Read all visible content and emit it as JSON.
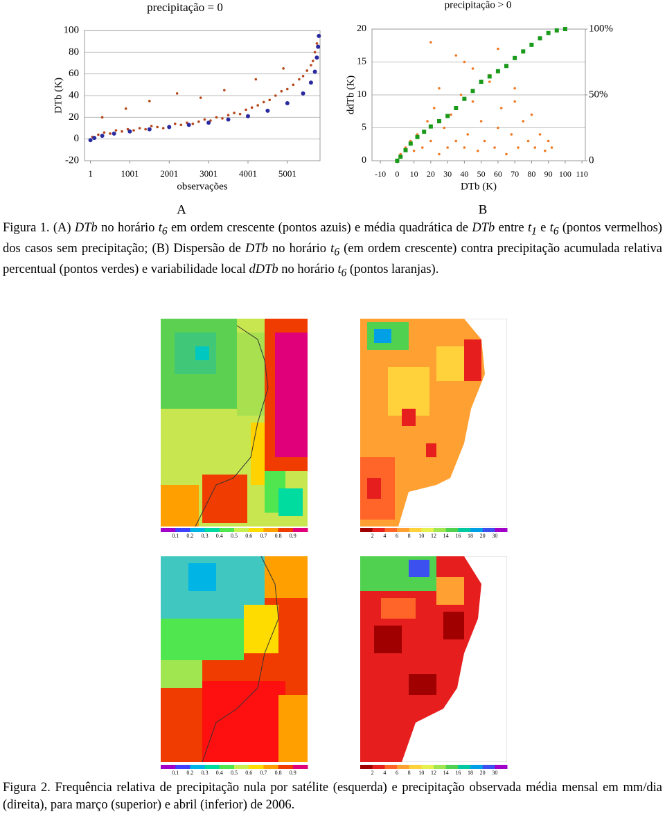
{
  "chart_data": [
    {
      "type": "scatter",
      "title": "precipitação = 0",
      "ylabel": "DTb (K)",
      "xlabel": "observações",
      "xlim": [
        -150,
        5830
      ],
      "ylim": [
        -20,
        100
      ],
      "xticks": [
        1,
        1001,
        2001,
        3001,
        4001,
        5001
      ],
      "yticks": [
        -20,
        0,
        20,
        40,
        60,
        80,
        100
      ],
      "grid": true,
      "series": [
        {
          "color": "#b5461a",
          "x": [
            50,
            200,
            350,
            500,
            650,
            800,
            950,
            1100,
            1250,
            1400,
            1550,
            1700,
            1850,
            2000,
            2150,
            2300,
            2450,
            2600,
            2750,
            2900,
            3050,
            3200,
            3350,
            3500,
            3650,
            3800,
            3950,
            4100,
            4250,
            4400,
            4550,
            4700,
            4850,
            5000,
            5150,
            5300,
            5400,
            5500,
            5600,
            5650,
            5700,
            5750,
            300,
            900,
            1500,
            2200,
            2800,
            3400,
            4200,
            4900
          ],
          "values": [
            2,
            4,
            6,
            5,
            8,
            7,
            9,
            8,
            10,
            9,
            12,
            11,
            10,
            12,
            14,
            13,
            15,
            14,
            16,
            18,
            17,
            20,
            19,
            22,
            24,
            23,
            27,
            29,
            31,
            34,
            36,
            40,
            44,
            46,
            50,
            55,
            58,
            63,
            68,
            72,
            80,
            88,
            20,
            28,
            35,
            42,
            38,
            45,
            55,
            65
          ]
        },
        {
          "color": "#2a2aa0",
          "x": [
            1,
            100,
            300,
            600,
            1000,
            1500,
            2000,
            2500,
            3000,
            3500,
            4000,
            4500,
            5000,
            5400,
            5600,
            5700,
            5750,
            5780,
            5800
          ],
          "values": [
            -1,
            1,
            3,
            5,
            7,
            9,
            11,
            13,
            15,
            18,
            21,
            26,
            33,
            42,
            52,
            62,
            75,
            85,
            95
          ]
        }
      ]
    },
    {
      "type": "scatter",
      "title": "precipitação > 0",
      "ylabel": "ddTb (K)",
      "xlabel": "DTb (K)",
      "xlim": [
        -15,
        112
      ],
      "ylim": [
        0,
        20
      ],
      "y2lim": [
        0,
        100
      ],
      "xticks": [
        -10,
        0,
        10,
        20,
        30,
        40,
        50,
        60,
        70,
        80,
        90,
        100,
        110
      ],
      "yticks": [
        0,
        5,
        10,
        15,
        20
      ],
      "y2ticks": [
        0,
        {
          "value": 50,
          "label": "50%"
        },
        {
          "value": 100,
          "label": "100%"
        }
      ],
      "grid": true,
      "series": [
        {
          "color": "#f07820",
          "x": [
            2,
            5,
            8,
            10,
            12,
            15,
            18,
            20,
            22,
            25,
            28,
            30,
            32,
            35,
            38,
            40,
            42,
            45,
            48,
            50,
            52,
            55,
            58,
            60,
            62,
            65,
            68,
            70,
            72,
            75,
            78,
            80,
            82,
            85,
            88,
            90,
            92,
            20,
            35,
            45,
            55,
            60,
            70,
            25,
            40
          ],
          "values": [
            1,
            2,
            3,
            1.5,
            4,
            2,
            6,
            3,
            8,
            1,
            5,
            2,
            7,
            3,
            10,
            2,
            4,
            9,
            1.5,
            6,
            3,
            12,
            2,
            5,
            8,
            1,
            4,
            11,
            2,
            6,
            3,
            7,
            2,
            4,
            1.5,
            3,
            2,
            18,
            16,
            14,
            13,
            17,
            9,
            11,
            15
          ]
        },
        {
          "color": "#1a9a1a",
          "axis": "y2",
          "x": [
            0,
            2,
            5,
            8,
            12,
            16,
            20,
            25,
            30,
            35,
            40,
            45,
            50,
            55,
            60,
            65,
            70,
            75,
            80,
            85,
            90,
            95,
            100
          ],
          "values": [
            0,
            3,
            8,
            13,
            18,
            22,
            26,
            30,
            34,
            40,
            47,
            53,
            60,
            64,
            68,
            72,
            78,
            83,
            88,
            93,
            97,
            99,
            100
          ]
        }
      ]
    }
  ],
  "figure1_labels": [
    "A",
    "B"
  ],
  "figure1_caption": [
    {
      "text": "Figura 1. (A) ",
      "style": "normal"
    },
    {
      "text": "DTb",
      "style": "italic"
    },
    {
      "text": " no horário ",
      "style": "normal"
    },
    {
      "text": "t",
      "style": "italic"
    },
    {
      "text": "6",
      "style": "sub"
    },
    {
      "text": " em ordem crescente (pontos azuis) e média quadrática de ",
      "style": "normal"
    },
    {
      "text": "DTb",
      "style": "italic"
    },
    {
      "text": " entre ",
      "style": "normal"
    },
    {
      "text": "t",
      "style": "italic"
    },
    {
      "text": "1",
      "style": "sub"
    },
    {
      "text": " e ",
      "style": "normal"
    },
    {
      "text": "t",
      "style": "italic"
    },
    {
      "text": "6",
      "style": "sub"
    },
    {
      "text": " (pontos vermelhos) dos casos sem precipitação; (B) Dispersão de ",
      "style": "normal"
    },
    {
      "text": "DTb",
      "style": "italic"
    },
    {
      "text": " no horário ",
      "style": "normal"
    },
    {
      "text": "t",
      "style": "italic"
    },
    {
      "text": "6",
      "style": "sub"
    },
    {
      "text": " (em ordem crescente) contra precipitação acumulada relativa percentual (pontos verdes) e variabilidade local ",
      "style": "normal"
    },
    {
      "text": "dDTb",
      "style": "italic"
    },
    {
      "text": " no horário ",
      "style": "normal"
    },
    {
      "text": "t",
      "style": "italic"
    },
    {
      "text": "6",
      "style": "sub"
    },
    {
      "text": " (pontos laranjas).",
      "style": "normal"
    }
  ],
  "figure2": {
    "colorbars": [
      {
        "colors": [
          "#a000c8",
          "#4040ff",
          "#00b4e6",
          "#00dca0",
          "#50e650",
          "#c8f050",
          "#ffdc00",
          "#ffa000",
          "#f03c00",
          "#e0007a"
        ],
        "labels": [
          0.1,
          0.2,
          0.3,
          0.4,
          0.5,
          0.6,
          0.7,
          0.8,
          0.9
        ]
      },
      {
        "colors": [
          "#a00000",
          "#e61e1e",
          "#ff6428",
          "#ffa032",
          "#ffd23c",
          "#e6f050",
          "#a0e650",
          "#50d250",
          "#00c8a0",
          "#00a0e6",
          "#3c50f0",
          "#a000c8"
        ],
        "labels": [
          2,
          4,
          6,
          8,
          10,
          12,
          14,
          16,
          18,
          20,
          30
        ]
      },
      {
        "colors": [
          "#a000c8",
          "#4040ff",
          "#00b4e6",
          "#00dca0",
          "#50e650",
          "#c8f050",
          "#ffdc00",
          "#ffa000",
          "#f03c00",
          "#e0007a"
        ],
        "labels": [
          0.1,
          0.2,
          0.3,
          0.4,
          0.5,
          0.6,
          0.7,
          0.8,
          0.9
        ]
      },
      {
        "colors": [
          "#a00000",
          "#e61e1e",
          "#ff6428",
          "#ffa032",
          "#ffd23c",
          "#e6f050",
          "#a0e650",
          "#50d250",
          "#00c8a0",
          "#00a0e6",
          "#3c50f0",
          "#a000c8"
        ],
        "labels": [
          2,
          4,
          6,
          8,
          10,
          12,
          14,
          16,
          18,
          20,
          30
        ]
      }
    ],
    "caption": "Figura 2. Frequência relativa de precipitação nula por satélite (esquerda) e precipitação observada média mensal em mm/dia (direita), para março (superior) e abril (inferior) de 2006."
  }
}
